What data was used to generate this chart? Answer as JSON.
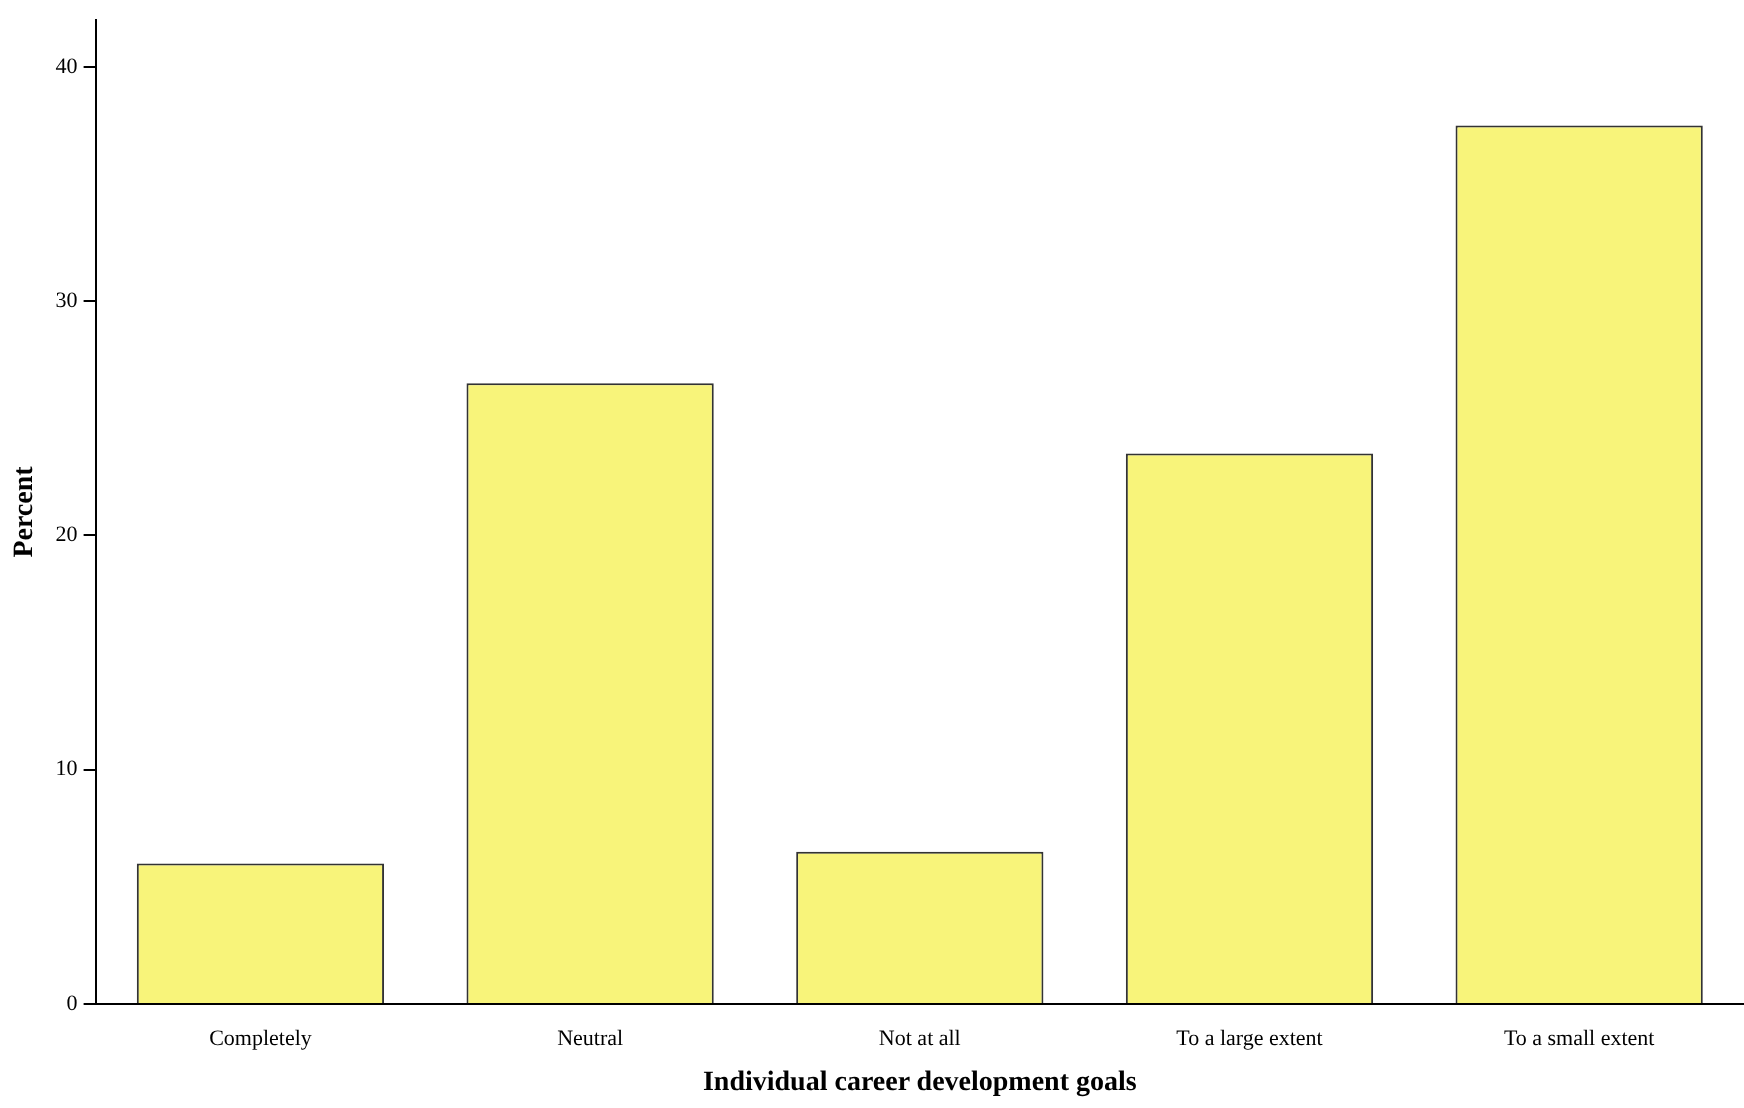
{
  "chart_data": {
    "type": "bar",
    "xlabel": "Individual career development goals",
    "ylabel": "Percent",
    "categories": [
      "Completely",
      "Neutral",
      "Not at all",
      "To a large extent",
      "To a small extent"
    ],
    "values": [
      6.0,
      26.5,
      6.5,
      23.5,
      37.5
    ],
    "color": "#f8f47a",
    "ylim": [
      0,
      42
    ],
    "yticks": [
      0,
      10,
      20,
      30,
      40
    ],
    "grid": false,
    "legend": false
  }
}
